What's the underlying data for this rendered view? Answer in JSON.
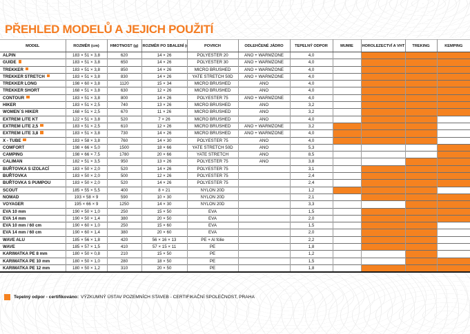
{
  "title": "PŘEHLED MODELŮ A JEJICH POUŽITÍ",
  "accent_color": "#f58220",
  "table": {
    "columns": [
      "MODEL",
      "ROZMĚR (cm)",
      "HMOTNOST (g)",
      "ROZMĚR PO SBALENÍ (cm)",
      "POVRCH",
      "ODLEHČENÉ JÁDRO",
      "TEPELNÝ ODPOR",
      "MUMIE",
      "HOROLEZECTVÍ A VHT",
      "TREKING",
      "KEMPING"
    ],
    "rows": [
      {
        "model": "ALPIN",
        "badge": false,
        "rozmer": "183 × 51 × 3,8",
        "hmotnost": "620",
        "sbaleni": "14 × 26",
        "povrch": "POLYESTER 20",
        "jadro": "ANO + WARMZONE",
        "odpor": "4,0",
        "mumie": false,
        "horolezectvi": true,
        "treking": true,
        "kemping": true
      },
      {
        "model": "GUIDE",
        "badge": true,
        "rozmer": "183 × 51 × 3,8",
        "hmotnost": "650",
        "sbaleni": "14 × 26",
        "povrch": "POLYESTER 30",
        "jadro": "ANO + WARMZONE",
        "odpor": "4,0",
        "mumie": false,
        "horolezectvi": true,
        "treking": true,
        "kemping": true
      },
      {
        "model": "TREKKER",
        "badge": true,
        "rozmer": "183 × 51 × 3,8",
        "hmotnost": "850",
        "sbaleni": "14 × 26",
        "povrch": "MICRO BRUSHED",
        "jadro": "ANO + WARMZONE",
        "odpor": "4,0",
        "mumie": false,
        "horolezectvi": true,
        "treking": true,
        "kemping": true
      },
      {
        "model": "TREKKER STRETCH",
        "badge": true,
        "rozmer": "183 × 51 × 3,8",
        "hmotnost": "830",
        "sbaleni": "14 × 26",
        "povrch": "YATE STRETCH 50D",
        "jadro": "ANO + WARMZONE",
        "odpor": "4,0",
        "mumie": false,
        "horolezectvi": true,
        "treking": true,
        "kemping": true
      },
      {
        "model": "TREKKER LONG",
        "badge": false,
        "rozmer": "198 × 60 × 3,8",
        "hmotnost": "1120",
        "sbaleni": "15 × 34",
        "povrch": "MICRO BRUSHED",
        "jadro": "ANO",
        "odpor": "4,0",
        "mumie": false,
        "horolezectvi": true,
        "treking": true,
        "kemping": true
      },
      {
        "model": "TREKKER SHORT",
        "badge": false,
        "rozmer": "168 × 51 × 3,8",
        "hmotnost": "630",
        "sbaleni": "12 × 26",
        "povrch": "MICRO BRUSHED",
        "jadro": "ANO",
        "odpor": "4,0",
        "mumie": false,
        "horolezectvi": true,
        "treking": true,
        "kemping": true
      },
      {
        "model": "CONTOUR",
        "badge": true,
        "rozmer": "183 × 51 × 3,8",
        "hmotnost": "800",
        "sbaleni": "14 × 26",
        "povrch": "POLYESTER 75",
        "jadro": "ANO + WARMZONE",
        "odpor": "4,0",
        "mumie": false,
        "horolezectvi": true,
        "treking": true,
        "kemping": true
      },
      {
        "model": "HIKER",
        "badge": false,
        "rozmer": "183 × 51 × 2,5",
        "hmotnost": "740",
        "sbaleni": "13 × 26",
        "povrch": "MICRO BRUSHED",
        "jadro": "ANO",
        "odpor": "3,2",
        "mumie": false,
        "horolezectvi": true,
        "treking": true,
        "kemping": true
      },
      {
        "model": "WOMEN´S HIKER",
        "badge": false,
        "rozmer": "168 × 51 × 2,5",
        "hmotnost": "670",
        "sbaleni": "11 × 26",
        "povrch": "MICRO BRUSHED",
        "jadro": "ANO",
        "odpor": "3,2",
        "mumie": false,
        "horolezectvi": true,
        "treking": true,
        "kemping": true
      },
      {
        "model": "EXTREM LITE KT",
        "badge": false,
        "rozmer": "122 × 51 × 3,8",
        "hmotnost": "520",
        "sbaleni": "7 × 26",
        "povrch": "MICRO BRUSHED",
        "jadro": "ANO",
        "odpor": "4,0",
        "mumie": false,
        "horolezectvi": true,
        "treking": true,
        "kemping": false
      },
      {
        "model": "EXTREM LITE 2,5",
        "badge": true,
        "rozmer": "183 × 51 × 2,5",
        "hmotnost": "610",
        "sbaleni": "12 × 26",
        "povrch": "MICRO BRUSHED",
        "jadro": "ANO + WARMZONE",
        "odpor": "3,2",
        "mumie": true,
        "horolezectvi": true,
        "treking": true,
        "kemping": false
      },
      {
        "model": "EXTREM LITE 3,8",
        "badge": true,
        "rozmer": "183 × 51 × 3,8",
        "hmotnost": "730",
        "sbaleni": "14 × 26",
        "povrch": "MICRO BRUSHED",
        "jadro": "ANO + WARMZONE",
        "odpor": "4,0",
        "mumie": true,
        "horolezectvi": true,
        "treking": true,
        "kemping": false
      },
      {
        "model": "X - TUBE",
        "badge": true,
        "rozmer": "183 × 58 × 3,8",
        "hmotnost": "760",
        "sbaleni": "14 × 30",
        "povrch": "POLYESTER 75",
        "jadro": "ANO",
        "odpor": "4,0",
        "mumie": true,
        "horolezectvi": true,
        "treking": true,
        "kemping": false
      },
      {
        "model": "COMFORT",
        "badge": false,
        "rozmer": "198 × 66 × 5,0",
        "hmotnost": "1500",
        "sbaleni": "18 × 66",
        "povrch": "YATE STRETCH 50D",
        "jadro": "ANO",
        "odpor": "5,3",
        "mumie": false,
        "horolezectvi": false,
        "treking": false,
        "kemping": true
      },
      {
        "model": "CAMPING",
        "badge": false,
        "rozmer": "198 × 66 × 7,5",
        "hmotnost": "1780",
        "sbaleni": "20 × 66",
        "povrch": "YATE STRETCH",
        "jadro": "ANO",
        "odpor": "8,5",
        "mumie": false,
        "horolezectvi": false,
        "treking": false,
        "kemping": true
      },
      {
        "model": "CALIMAN",
        "badge": false,
        "rozmer": "182 × 51 × 3,5",
        "hmotnost": "950",
        "sbaleni": "13 × 26",
        "povrch": "POLYESTER 75",
        "jadro": "ANO",
        "odpor": "3,8",
        "mumie": false,
        "horolezectvi": false,
        "treking": true,
        "kemping": true
      },
      {
        "model": "BUŘTOVKA S IZOLACÍ",
        "badge": false,
        "rozmer": "183 × 50 × 2,0",
        "hmotnost": "520",
        "sbaleni": "14 × 26",
        "povrch": "POLYESTER 75",
        "jadro": "",
        "odpor": "3,1",
        "mumie": false,
        "horolezectvi": true,
        "treking": true,
        "kemping": true
      },
      {
        "model": "BUŘTOVKA",
        "badge": false,
        "rozmer": "183 × 50 × 2,0",
        "hmotnost": "500",
        "sbaleni": "12 × 26",
        "povrch": "POLYESTER 75",
        "jadro": "",
        "odpor": "2,4",
        "mumie": false,
        "horolezectvi": true,
        "treking": true,
        "kemping": true
      },
      {
        "model": "BUŘTOVKA S PUMPOU",
        "badge": false,
        "rozmer": "183 × 50 × 2,0",
        "hmotnost": "520",
        "sbaleni": "14 × 26",
        "povrch": "POLYESTER 75",
        "jadro": "",
        "odpor": "2,4",
        "mumie": false,
        "horolezectvi": true,
        "treking": true,
        "kemping": true
      },
      {
        "model": "SCOUT",
        "badge": false,
        "rozmer": "185 × 55 × 5,5",
        "hmotnost": "400",
        "sbaleni": "8 × 21",
        "povrch": "NYLON 20D",
        "jadro": "",
        "odpor": "1,2",
        "mumie": true,
        "horolezectvi": true,
        "treking": true,
        "kemping": false
      },
      {
        "model": "NOMAD",
        "badge": false,
        "rozmer": "193 × 58 × 9",
        "hmotnost": "590",
        "sbaleni": "10 × 30",
        "povrch": "NYLON 20D",
        "jadro": "",
        "odpor": "2,1",
        "mumie": false,
        "horolezectvi": true,
        "treking": true,
        "kemping": true
      },
      {
        "model": "VOYAGER",
        "badge": false,
        "rozmer": "195 × 66 × 9",
        "hmotnost": "1250",
        "sbaleni": "14 × 30",
        "povrch": "NYLON 20D",
        "jadro": "",
        "odpor": "3,3",
        "mumie": false,
        "horolezectvi": false,
        "treking": true,
        "kemping": true
      },
      {
        "model": "EVA 10 mm",
        "badge": false,
        "rozmer": "190 × 50 × 1,0",
        "hmotnost": "250",
        "sbaleni": "15 × 50",
        "povrch": "EVA",
        "jadro": "",
        "odpor": "1,5",
        "mumie": false,
        "horolezectvi": true,
        "treking": true,
        "kemping": true
      },
      {
        "model": "EVA 14 mm",
        "badge": false,
        "rozmer": "190 × 50 × 1,4",
        "hmotnost": "380",
        "sbaleni": "20 × 50",
        "povrch": "EVA",
        "jadro": "",
        "odpor": "2,0",
        "mumie": false,
        "horolezectvi": true,
        "treking": true,
        "kemping": true
      },
      {
        "model": "EVA 10 mm / 60 cm",
        "badge": false,
        "rozmer": "190 × 60 × 1,0",
        "hmotnost": "250",
        "sbaleni": "15 × 60",
        "povrch": "EVA",
        "jadro": "",
        "odpor": "1,5",
        "mumie": false,
        "horolezectvi": true,
        "treking": true,
        "kemping": false
      },
      {
        "model": "EVA 14 mm / 60 cm",
        "badge": false,
        "rozmer": "190 × 60 × 1,4",
        "hmotnost": "380",
        "sbaleni": "20 × 60",
        "povrch": "EVA",
        "jadro": "",
        "odpor": "2,0",
        "mumie": false,
        "horolezectvi": true,
        "treking": true,
        "kemping": false
      },
      {
        "model": "WAVE ALU",
        "badge": false,
        "rozmer": "185 × 56 × 1,8",
        "hmotnost": "420",
        "sbaleni": "56 × 16 × 13",
        "povrch": "PE + Al fólie",
        "jadro": "",
        "odpor": "2,2",
        "mumie": false,
        "horolezectvi": true,
        "treking": true,
        "kemping": false
      },
      {
        "model": "WAVE",
        "badge": false,
        "rozmer": "185 × 57 × 1,5",
        "hmotnost": "410",
        "sbaleni": "57 × 15 × 11",
        "povrch": "PE",
        "jadro": "",
        "odpor": "1,8",
        "mumie": false,
        "horolezectvi": true,
        "treking": true,
        "kemping": false
      },
      {
        "model": "KARIMATKA PE 8 mm",
        "badge": false,
        "rozmer": "180 × 50 × 0,8",
        "hmotnost": "210",
        "sbaleni": "15 × 50",
        "povrch": "PE",
        "jadro": "",
        "odpor": "1,2",
        "mumie": false,
        "horolezectvi": false,
        "treking": true,
        "kemping": false
      },
      {
        "model": "KARIMATKA PE 10 mm",
        "badge": false,
        "rozmer": "180 × 50 × 1,0",
        "hmotnost": "280",
        "sbaleni": "18 × 50",
        "povrch": "PE",
        "jadro": "",
        "odpor": "1,5",
        "mumie": false,
        "horolezectvi": false,
        "treking": true,
        "kemping": true
      },
      {
        "model": "KARIMATKA PE 12 mm",
        "badge": false,
        "rozmer": "180 × 50 × 1,2",
        "hmotnost": "310",
        "sbaleni": "20 × 50",
        "povrch": "PE",
        "jadro": "",
        "odpor": "1,8",
        "mumie": false,
        "horolezectvi": true,
        "treking": true,
        "kemping": true
      }
    ]
  },
  "footer": {
    "label_bold": "Tepelný odpor - certifikováno:",
    "text": "VÝZKUMNÝ ÚSTAV POZEMNÍCH STAVEB - CERTIFIKAČNÍ SPOLEČNOST, PRAHA"
  }
}
